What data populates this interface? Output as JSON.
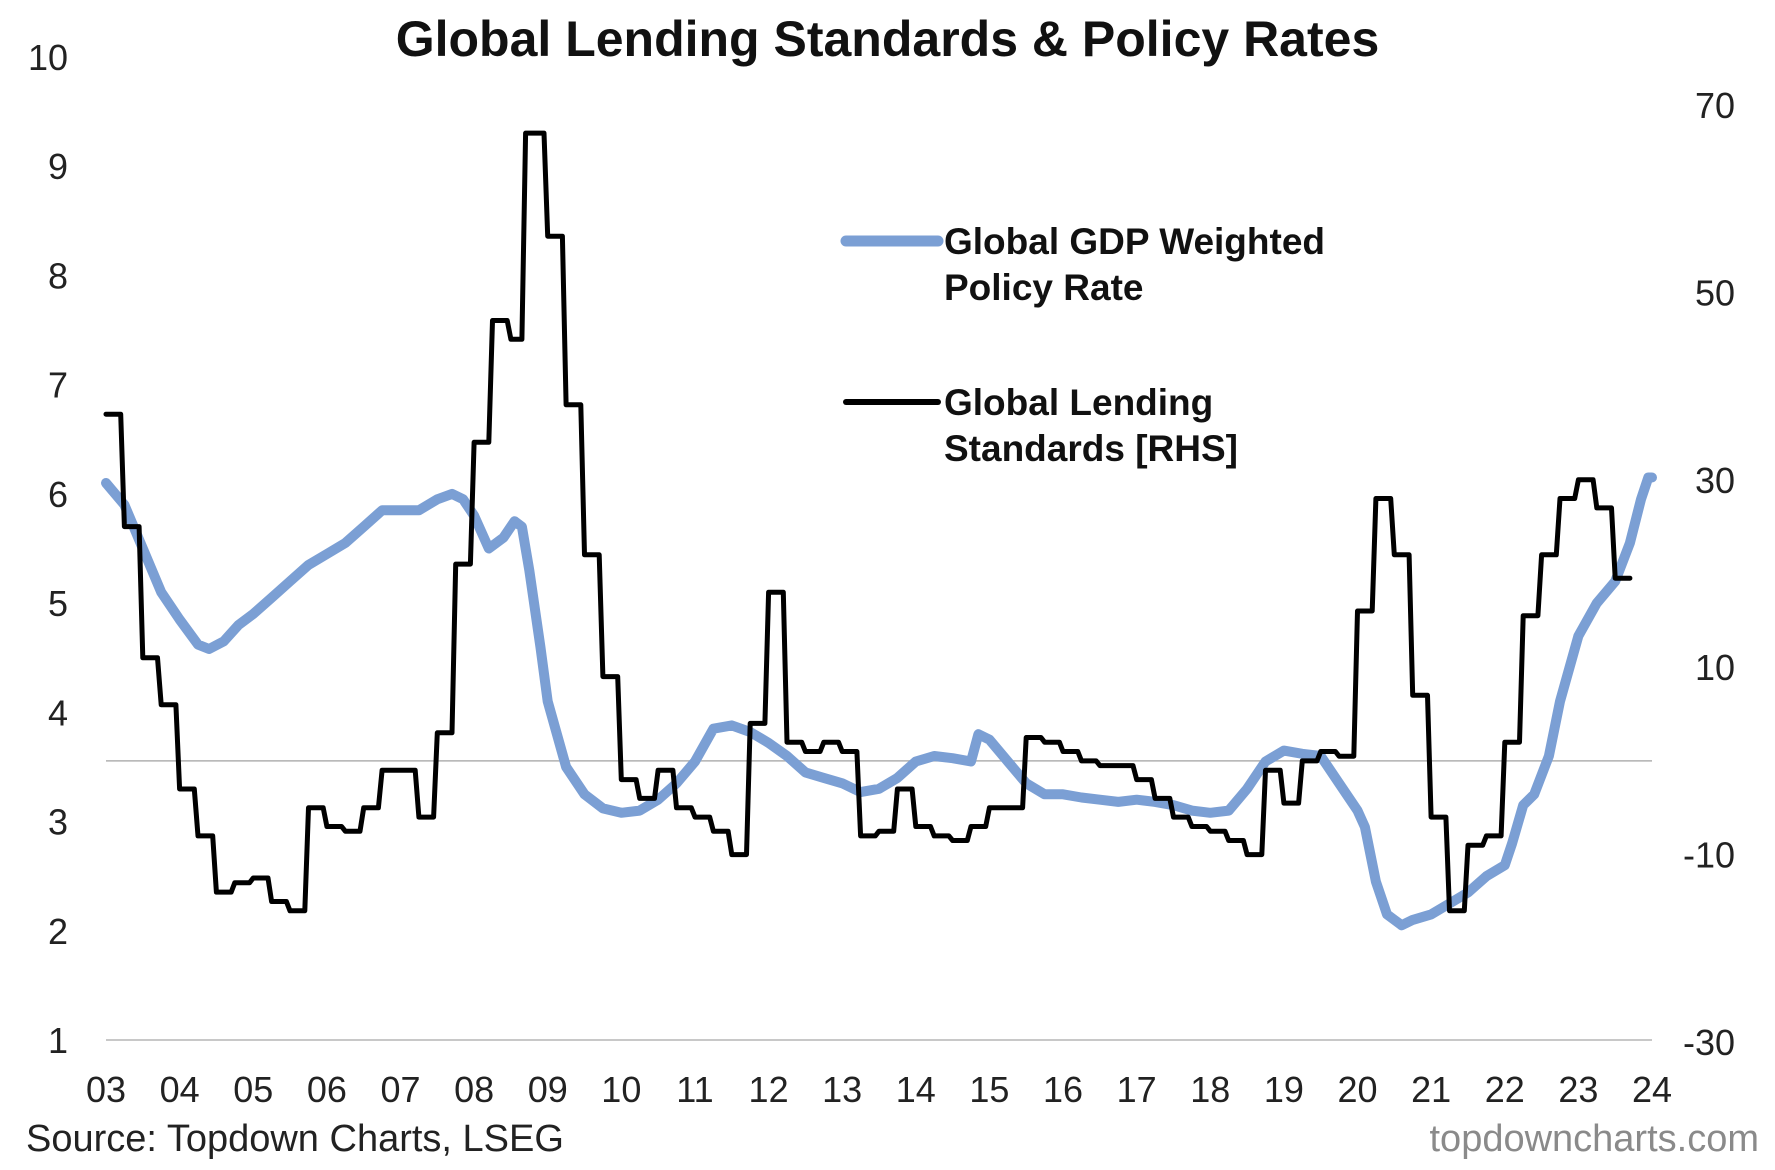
{
  "chart_data": {
    "type": "line",
    "title": "Global Lending Standards & Policy Rates",
    "x_tick_labels": [
      "03",
      "04",
      "05",
      "06",
      "07",
      "08",
      "09",
      "10",
      "11",
      "12",
      "13",
      "14",
      "15",
      "16",
      "17",
      "18",
      "19",
      "20",
      "21",
      "22",
      "23",
      "24"
    ],
    "x_range": [
      2003,
      2024
    ],
    "y_left": {
      "ylim": [
        1,
        10
      ],
      "ticks": [
        1,
        2,
        3,
        4,
        5,
        6,
        7,
        8,
        9,
        10
      ]
    },
    "y_right": {
      "ylim": [
        -30,
        70
      ],
      "ticks": [
        -30,
        -10,
        10,
        30,
        50,
        70
      ]
    },
    "reference_line_rhs": 0,
    "grid": false,
    "legend_placement": "top-right",
    "series": [
      {
        "name": "Global GDP Weighted Policy Rate",
        "axis": "left",
        "color": "#7b9fd4",
        "points": [
          [
            2003.0,
            6.1
          ],
          [
            2003.25,
            5.9
          ],
          [
            2003.5,
            5.5
          ],
          [
            2003.75,
            5.1
          ],
          [
            2004.0,
            4.85
          ],
          [
            2004.25,
            4.62
          ],
          [
            2004.4,
            4.58
          ],
          [
            2004.6,
            4.65
          ],
          [
            2004.8,
            4.8
          ],
          [
            2005.0,
            4.9
          ],
          [
            2005.25,
            5.05
          ],
          [
            2005.5,
            5.2
          ],
          [
            2005.75,
            5.35
          ],
          [
            2006.0,
            5.45
          ],
          [
            2006.25,
            5.55
          ],
          [
            2006.5,
            5.7
          ],
          [
            2006.75,
            5.85
          ],
          [
            2007.0,
            5.85
          ],
          [
            2007.25,
            5.85
          ],
          [
            2007.5,
            5.95
          ],
          [
            2007.7,
            6.0
          ],
          [
            2007.85,
            5.95
          ],
          [
            2008.0,
            5.8
          ],
          [
            2008.2,
            5.5
          ],
          [
            2008.4,
            5.6
          ],
          [
            2008.55,
            5.75
          ],
          [
            2008.65,
            5.7
          ],
          [
            2008.75,
            5.3
          ],
          [
            2008.9,
            4.6
          ],
          [
            2009.0,
            4.1
          ],
          [
            2009.25,
            3.5
          ],
          [
            2009.5,
            3.25
          ],
          [
            2009.75,
            3.12
          ],
          [
            2010.0,
            3.08
          ],
          [
            2010.25,
            3.1
          ],
          [
            2010.5,
            3.2
          ],
          [
            2010.75,
            3.35
          ],
          [
            2011.0,
            3.55
          ],
          [
            2011.25,
            3.85
          ],
          [
            2011.5,
            3.88
          ],
          [
            2011.75,
            3.82
          ],
          [
            2012.0,
            3.72
          ],
          [
            2012.25,
            3.6
          ],
          [
            2012.5,
            3.45
          ],
          [
            2012.75,
            3.4
          ],
          [
            2013.0,
            3.35
          ],
          [
            2013.25,
            3.27
          ],
          [
            2013.5,
            3.3
          ],
          [
            2013.75,
            3.4
          ],
          [
            2014.0,
            3.55
          ],
          [
            2014.25,
            3.6
          ],
          [
            2014.5,
            3.58
          ],
          [
            2014.75,
            3.55
          ],
          [
            2014.85,
            3.8
          ],
          [
            2015.0,
            3.75
          ],
          [
            2015.25,
            3.55
          ],
          [
            2015.5,
            3.35
          ],
          [
            2015.75,
            3.25
          ],
          [
            2016.0,
            3.25
          ],
          [
            2016.25,
            3.22
          ],
          [
            2016.5,
            3.2
          ],
          [
            2016.75,
            3.18
          ],
          [
            2017.0,
            3.2
          ],
          [
            2017.25,
            3.18
          ],
          [
            2017.5,
            3.15
          ],
          [
            2017.75,
            3.1
          ],
          [
            2018.0,
            3.08
          ],
          [
            2018.25,
            3.1
          ],
          [
            2018.5,
            3.3
          ],
          [
            2018.75,
            3.55
          ],
          [
            2019.0,
            3.65
          ],
          [
            2019.25,
            3.62
          ],
          [
            2019.5,
            3.6
          ],
          [
            2019.75,
            3.35
          ],
          [
            2020.0,
            3.1
          ],
          [
            2020.1,
            2.95
          ],
          [
            2020.25,
            2.45
          ],
          [
            2020.4,
            2.15
          ],
          [
            2020.6,
            2.05
          ],
          [
            2020.75,
            2.1
          ],
          [
            2021.0,
            2.15
          ],
          [
            2021.25,
            2.25
          ],
          [
            2021.5,
            2.35
          ],
          [
            2021.75,
            2.5
          ],
          [
            2022.0,
            2.6
          ],
          [
            2022.1,
            2.8
          ],
          [
            2022.25,
            3.15
          ],
          [
            2022.4,
            3.25
          ],
          [
            2022.6,
            3.6
          ],
          [
            2022.75,
            4.1
          ],
          [
            2023.0,
            4.7
          ],
          [
            2023.25,
            5.0
          ],
          [
            2023.5,
            5.2
          ],
          [
            2023.7,
            5.55
          ],
          [
            2023.85,
            5.95
          ],
          [
            2023.95,
            6.15
          ],
          [
            2024.0,
            6.15
          ]
        ]
      },
      {
        "name": "Global Lending Standards [RHS]",
        "axis": "right",
        "color": "#000000",
        "points": [
          [
            2003.0,
            37
          ],
          [
            2003.2,
            37
          ],
          [
            2003.25,
            25
          ],
          [
            2003.45,
            25
          ],
          [
            2003.5,
            11
          ],
          [
            2003.7,
            11
          ],
          [
            2003.75,
            6
          ],
          [
            2003.95,
            6
          ],
          [
            2004.0,
            -3
          ],
          [
            2004.2,
            -3
          ],
          [
            2004.25,
            -8
          ],
          [
            2004.45,
            -8
          ],
          [
            2004.5,
            -14
          ],
          [
            2004.7,
            -14
          ],
          [
            2004.75,
            -13
          ],
          [
            2004.95,
            -13
          ],
          [
            2005.0,
            -12.5
          ],
          [
            2005.2,
            -12.5
          ],
          [
            2005.25,
            -15
          ],
          [
            2005.45,
            -15
          ],
          [
            2005.5,
            -16
          ],
          [
            2005.7,
            -16
          ],
          [
            2005.75,
            -5
          ],
          [
            2005.95,
            -5
          ],
          [
            2006.0,
            -7
          ],
          [
            2006.2,
            -7
          ],
          [
            2006.25,
            -7.5
          ],
          [
            2006.45,
            -7.5
          ],
          [
            2006.5,
            -5
          ],
          [
            2006.7,
            -5
          ],
          [
            2006.75,
            -1
          ],
          [
            2006.95,
            -1
          ],
          [
            2007.0,
            -1
          ],
          [
            2007.2,
            -1
          ],
          [
            2007.25,
            -6
          ],
          [
            2007.45,
            -6
          ],
          [
            2007.5,
            3
          ],
          [
            2007.7,
            3
          ],
          [
            2007.75,
            21
          ],
          [
            2007.95,
            21
          ],
          [
            2008.0,
            34
          ],
          [
            2008.2,
            34
          ],
          [
            2008.25,
            47
          ],
          [
            2008.45,
            47
          ],
          [
            2008.5,
            45
          ],
          [
            2008.65,
            45
          ],
          [
            2008.7,
            67
          ],
          [
            2008.95,
            67
          ],
          [
            2009.0,
            56
          ],
          [
            2009.2,
            56
          ],
          [
            2009.25,
            38
          ],
          [
            2009.45,
            38
          ],
          [
            2009.5,
            22
          ],
          [
            2009.7,
            22
          ],
          [
            2009.75,
            9
          ],
          [
            2009.95,
            9
          ],
          [
            2010.0,
            -2
          ],
          [
            2010.2,
            -2
          ],
          [
            2010.25,
            -4
          ],
          [
            2010.45,
            -4
          ],
          [
            2010.5,
            -1
          ],
          [
            2010.7,
            -1
          ],
          [
            2010.75,
            -5
          ],
          [
            2010.95,
            -5
          ],
          [
            2011.0,
            -6
          ],
          [
            2011.2,
            -6
          ],
          [
            2011.25,
            -7.5
          ],
          [
            2011.45,
            -7.5
          ],
          [
            2011.5,
            -10
          ],
          [
            2011.7,
            -10
          ],
          [
            2011.75,
            4
          ],
          [
            2011.95,
            4
          ],
          [
            2012.0,
            18
          ],
          [
            2012.2,
            18
          ],
          [
            2012.25,
            2
          ],
          [
            2012.45,
            2
          ],
          [
            2012.5,
            1
          ],
          [
            2012.7,
            1
          ],
          [
            2012.75,
            2
          ],
          [
            2012.95,
            2
          ],
          [
            2013.0,
            1
          ],
          [
            2013.2,
            1
          ],
          [
            2013.25,
            -8
          ],
          [
            2013.45,
            -8
          ],
          [
            2013.5,
            -7.5
          ],
          [
            2013.7,
            -7.5
          ],
          [
            2013.75,
            -3
          ],
          [
            2013.95,
            -3
          ],
          [
            2014.0,
            -7
          ],
          [
            2014.2,
            -7
          ],
          [
            2014.25,
            -8
          ],
          [
            2014.45,
            -8
          ],
          [
            2014.5,
            -8.5
          ],
          [
            2014.7,
            -8.5
          ],
          [
            2014.75,
            -7
          ],
          [
            2014.95,
            -7
          ],
          [
            2015.0,
            -5
          ],
          [
            2015.2,
            -5
          ],
          [
            2015.25,
            -5
          ],
          [
            2015.45,
            -5
          ],
          [
            2015.5,
            2.5
          ],
          [
            2015.7,
            2.5
          ],
          [
            2015.75,
            2
          ],
          [
            2015.95,
            2
          ],
          [
            2016.0,
            1
          ],
          [
            2016.2,
            1
          ],
          [
            2016.25,
            0
          ],
          [
            2016.45,
            0
          ],
          [
            2016.5,
            -0.5
          ],
          [
            2016.7,
            -0.5
          ],
          [
            2016.75,
            -0.5
          ],
          [
            2016.95,
            -0.5
          ],
          [
            2017.0,
            -2
          ],
          [
            2017.2,
            -2
          ],
          [
            2017.25,
            -4
          ],
          [
            2017.45,
            -4
          ],
          [
            2017.5,
            -6
          ],
          [
            2017.7,
            -6
          ],
          [
            2017.75,
            -7
          ],
          [
            2017.95,
            -7
          ],
          [
            2018.0,
            -7.5
          ],
          [
            2018.2,
            -7.5
          ],
          [
            2018.25,
            -8.5
          ],
          [
            2018.45,
            -8.5
          ],
          [
            2018.5,
            -10
          ],
          [
            2018.7,
            -10
          ],
          [
            2018.75,
            -1
          ],
          [
            2018.95,
            -1
          ],
          [
            2019.0,
            -4.5
          ],
          [
            2019.2,
            -4.5
          ],
          [
            2019.25,
            0
          ],
          [
            2019.45,
            0
          ],
          [
            2019.5,
            1
          ],
          [
            2019.7,
            1
          ],
          [
            2019.75,
            0.5
          ],
          [
            2019.95,
            0.5
          ],
          [
            2020.0,
            16
          ],
          [
            2020.2,
            16
          ],
          [
            2020.25,
            28
          ],
          [
            2020.45,
            28
          ],
          [
            2020.5,
            22
          ],
          [
            2020.7,
            22
          ],
          [
            2020.75,
            7
          ],
          [
            2020.95,
            7
          ],
          [
            2021.0,
            -6
          ],
          [
            2021.2,
            -6
          ],
          [
            2021.25,
            -16
          ],
          [
            2021.45,
            -16
          ],
          [
            2021.5,
            -9
          ],
          [
            2021.7,
            -9
          ],
          [
            2021.75,
            -8
          ],
          [
            2021.95,
            -8
          ],
          [
            2022.0,
            2
          ],
          [
            2022.2,
            2
          ],
          [
            2022.25,
            15.5
          ],
          [
            2022.45,
            15.5
          ],
          [
            2022.5,
            22
          ],
          [
            2022.7,
            22
          ],
          [
            2022.75,
            28
          ],
          [
            2022.95,
            28
          ],
          [
            2023.0,
            30
          ],
          [
            2023.2,
            30
          ],
          [
            2023.25,
            27
          ],
          [
            2023.45,
            27
          ],
          [
            2023.5,
            19.5
          ],
          [
            2023.7,
            19.5
          ]
        ]
      }
    ],
    "legend": [
      {
        "series": 0,
        "lines": [
          "Global GDP Weighted",
          "Policy Rate"
        ]
      },
      {
        "series": 1,
        "lines": [
          "Global Lending",
          "Standards [RHS]"
        ]
      }
    ]
  },
  "footer": {
    "source": "Source: Topdown Charts, LSEG",
    "watermark": "topdowncharts.com"
  }
}
